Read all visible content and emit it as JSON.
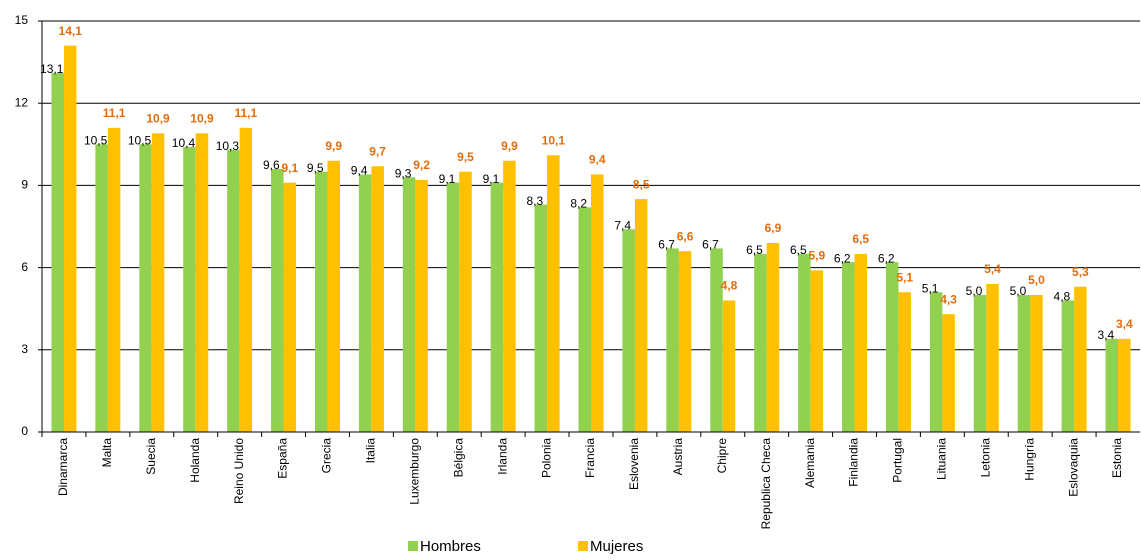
{
  "chart_data": {
    "type": "bar",
    "categories": [
      "Dinamarca",
      "Malta",
      "Suecia",
      "Holanda",
      "Reino Unido",
      "España",
      "Grecia",
      "Italia",
      "Luxemburgo",
      "Bélgica",
      "Irlanda",
      "Polonia",
      "Francia",
      "Eslovenia",
      "Austria",
      "Chipre",
      "Republica Checa",
      "Alemania",
      "Finlandia",
      "Portugal",
      "Lituania",
      "Letonia",
      "Hungría",
      "Eslovaquia",
      "Estonia"
    ],
    "series": [
      {
        "name": "Hombres",
        "color": "#92d050",
        "values": [
          13.1,
          10.5,
          10.5,
          10.4,
          10.3,
          9.6,
          9.5,
          9.4,
          9.3,
          9.1,
          9.1,
          8.3,
          8.2,
          7.4,
          6.7,
          6.7,
          6.5,
          6.5,
          6.2,
          6.2,
          5.1,
          5.0,
          5.0,
          4.8,
          3.4
        ],
        "value_labels": [
          "13,1",
          "10,5",
          "10,5",
          "10,4",
          "10,3",
          "9,6",
          "9,5",
          "9,4",
          "9,3",
          "9,1",
          "9,1",
          "8,3",
          "8,2",
          "7,4",
          "6,7",
          "6,7",
          "6,5",
          "6,5",
          "6,2",
          "6,2",
          "5,1",
          "5,0",
          "5,0",
          "4,8",
          "3,4"
        ]
      },
      {
        "name": "Mujeres",
        "color": "#ffc000",
        "values": [
          14.1,
          11.1,
          10.9,
          10.9,
          11.1,
          9.1,
          9.9,
          9.7,
          9.2,
          9.5,
          9.9,
          10.1,
          9.4,
          8.5,
          6.6,
          4.8,
          6.9,
          5.9,
          6.5,
          5.1,
          4.3,
          5.4,
          5.0,
          5.3,
          3.4
        ],
        "value_labels": [
          "14,1",
          "11,1",
          "10,9",
          "10,9",
          "11,1",
          "9,1",
          "9,9",
          "9,7",
          "9,2",
          "9,5",
          "9,9",
          "10,1",
          "9,4",
          "8,5",
          "6,6",
          "4,8",
          "6,9",
          "5,9",
          "6,5",
          "5,1",
          "4,3",
          "5,4",
          "5,0",
          "5,3",
          "3,4"
        ]
      }
    ],
    "ylim": [
      0,
      15
    ],
    "yticks": [
      0,
      3,
      6,
      9,
      12,
      15
    ],
    "grid": true
  }
}
